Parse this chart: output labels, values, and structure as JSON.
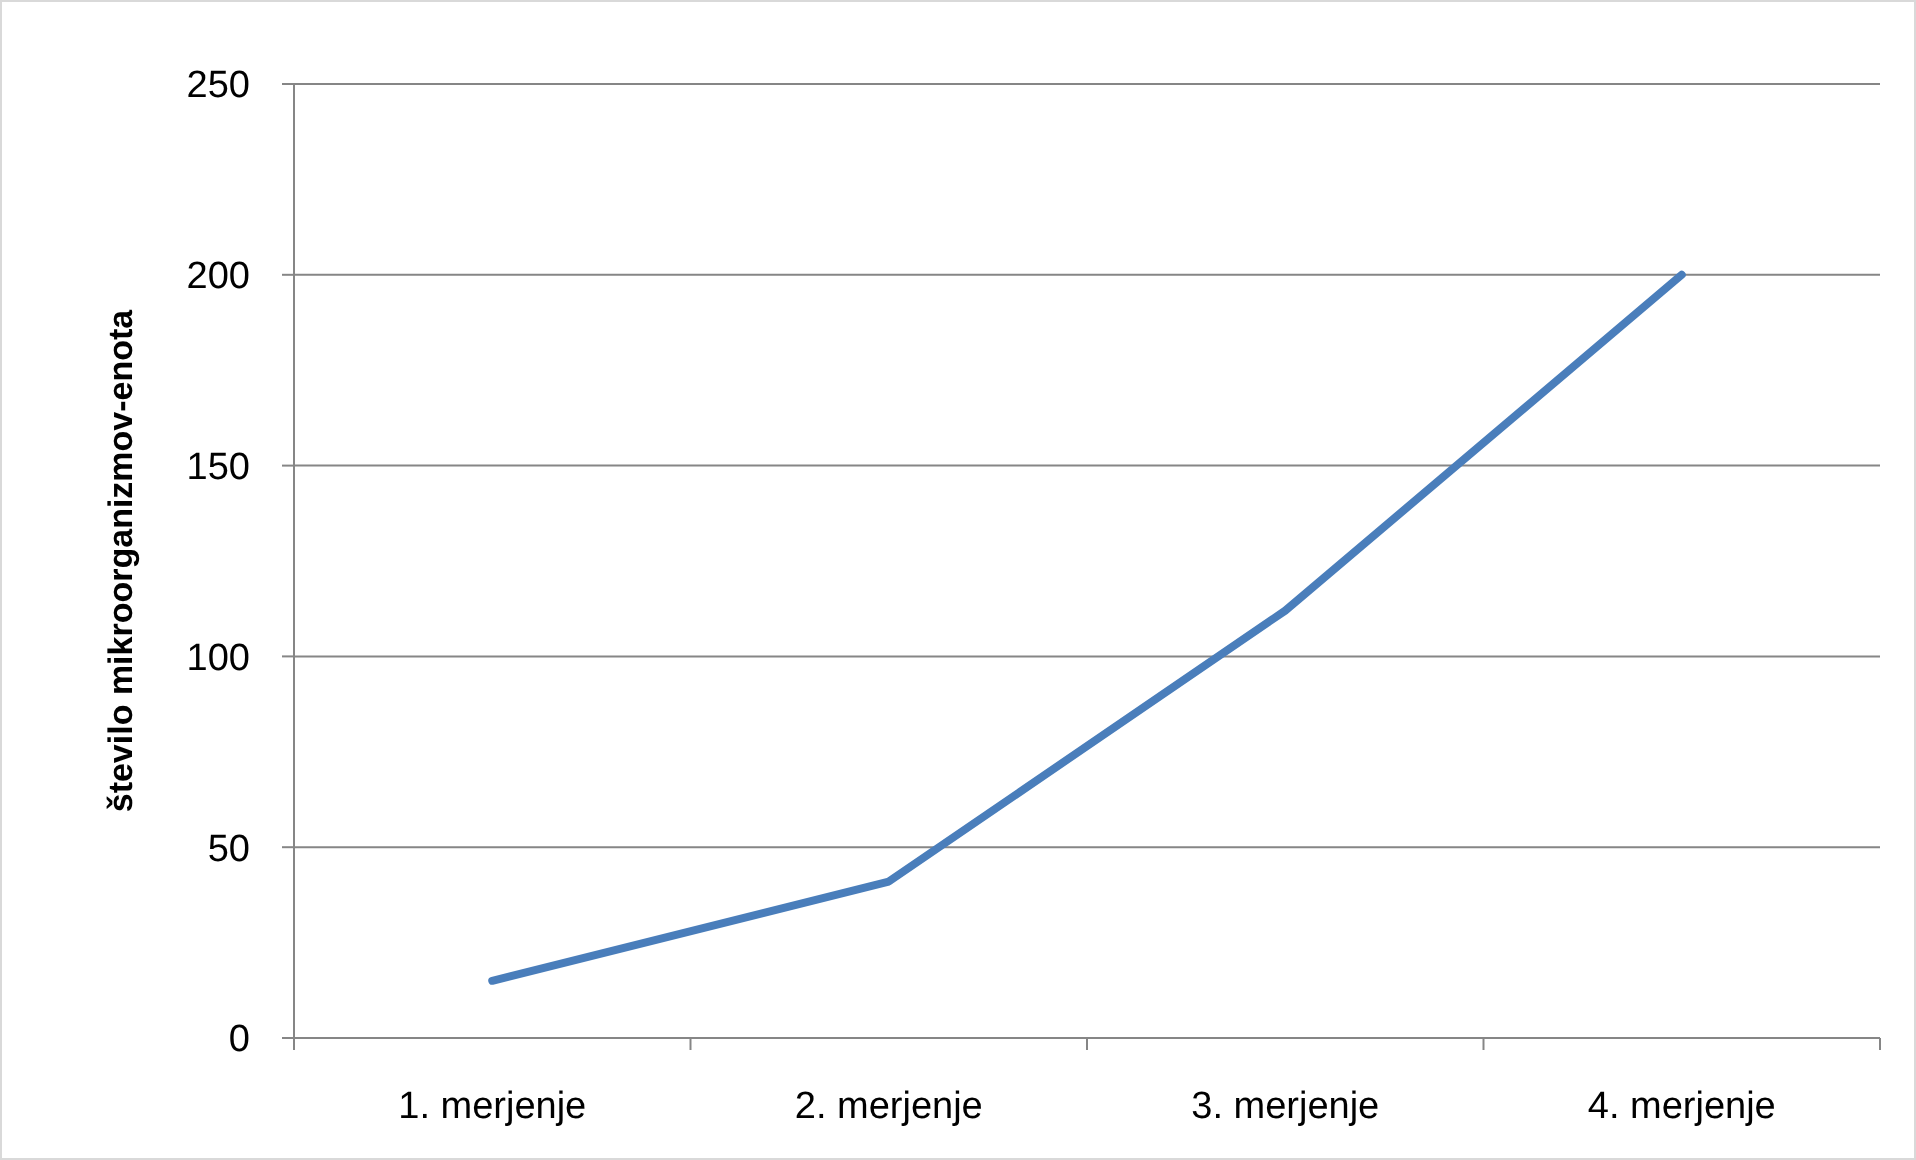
{
  "chart_data": {
    "type": "line",
    "ylabel": "število mikroorganizmov-enota",
    "categories": [
      "1. merjenje",
      "2. merjenje",
      "3. merjenje",
      "4. merjenje"
    ],
    "series": [
      {
        "color": "#4a7ebb",
        "values": [
          15,
          41,
          112,
          200
        ]
      }
    ],
    "ylim": [
      0,
      250
    ],
    "yticks": [
      0,
      50,
      100,
      150,
      200,
      250
    ],
    "grid": "y"
  }
}
